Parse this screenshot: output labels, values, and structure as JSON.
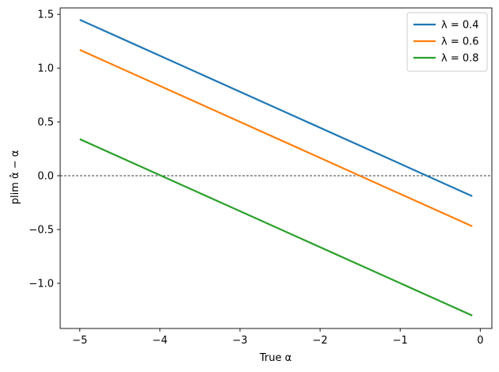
{
  "chart_data": {
    "type": "line",
    "xlabel": "True α",
    "ylabel": "plim α̂ − α",
    "xlim": [
      -5.245,
      0.145
    ],
    "ylim": [
      -1.42,
      1.56
    ],
    "xticks": [
      -5,
      -4,
      -3,
      -2,
      -1,
      0
    ],
    "xtick_labels": [
      "−5",
      "−4",
      "−3",
      "−2",
      "−1",
      "0"
    ],
    "yticks": [
      -1.0,
      -0.5,
      0.0,
      0.5,
      1.0,
      1.5
    ],
    "ytick_labels": [
      "−1.0",
      "−0.5",
      "0.0",
      "0.5",
      "1.0",
      "1.5"
    ],
    "reference_line": {
      "y": 0.0,
      "style": "dashed",
      "color": "#000000"
    },
    "legend_placement": "upper-right",
    "series": [
      {
        "name": "λ = 0.4",
        "color": "#1f77b4",
        "x": [
          -5.0,
          -0.1
        ],
        "y": [
          1.45,
          -0.19
        ]
      },
      {
        "name": "λ = 0.6",
        "color": "#ff7f0e",
        "x": [
          -5.0,
          -0.1
        ],
        "y": [
          1.17,
          -0.47
        ]
      },
      {
        "name": "λ = 0.8",
        "color": "#2ca02c",
        "x": [
          -5.0,
          -0.1
        ],
        "y": [
          0.34,
          -1.3
        ]
      }
    ]
  }
}
